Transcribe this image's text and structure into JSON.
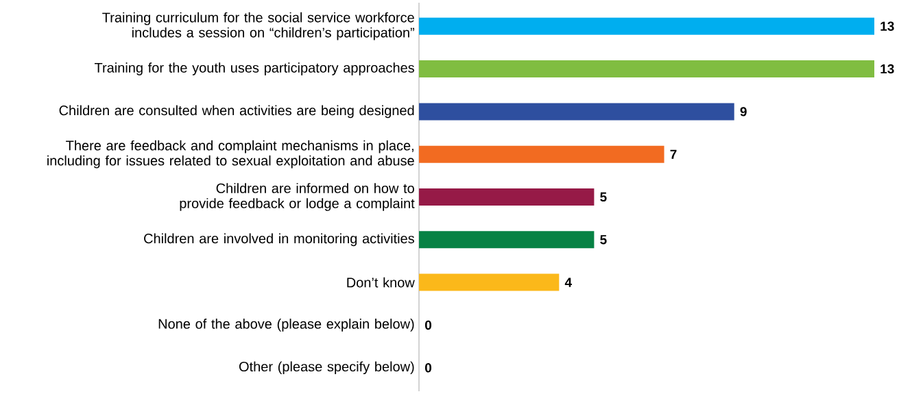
{
  "chart_data": {
    "type": "bar",
    "orientation": "horizontal",
    "data_labels": true,
    "categories": [
      "Training curriculum for the social service workforce includes a session on “children’s participation”",
      "Training for the youth uses participatory approaches",
      "Children are consulted when activities are being designed",
      "There are feedback and complaint mechanisms in place, including for issues related to sexual exploitation and abuse",
      "Children are informed on how to provide feedback or lodge a complaint",
      "Children are involved in monitoring activities",
      "Don’t know",
      "None of the above (please explain below)",
      "Other (please specify below)"
    ],
    "values": [
      13,
      13,
      9,
      7,
      5,
      5,
      4,
      0,
      0
    ],
    "colors": [
      "#00aeef",
      "#80bd41",
      "#2e4f9f",
      "#f26b21",
      "#961a47",
      "#078244",
      "#fbb81a",
      "#808080",
      "#808080"
    ],
    "xlim": [
      0,
      13
    ]
  }
}
